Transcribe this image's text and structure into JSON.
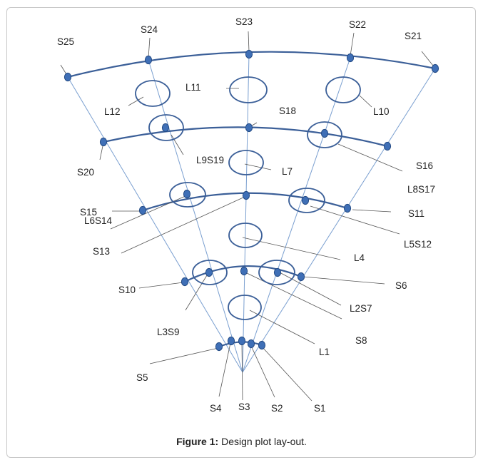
{
  "diagram": {
    "plot_labels": [
      "L1",
      "L2S7",
      "L3S9",
      "L4",
      "L5S12",
      "L6S14",
      "L7",
      "L8S17",
      "L9S19",
      "L10",
      "L11",
      "L12"
    ],
    "station_labels": [
      "S1",
      "S2",
      "S3",
      "S4",
      "S5",
      "S6",
      "S8",
      "S10",
      "S11",
      "S13",
      "S15",
      "S16",
      "S18",
      "S20",
      "S21",
      "S22",
      "S23",
      "S24",
      "S25"
    ]
  },
  "caption": {
    "label": "Figure 1:",
    "text": "Design plot lay-out."
  },
  "colors": {
    "arc": "#3b5f98",
    "dot": "#3f6fb6",
    "dot_stroke": "#234a84",
    "ray": "#7a9fd0",
    "leader": "#555555",
    "plot_ellipse": "#3b5f98"
  }
}
